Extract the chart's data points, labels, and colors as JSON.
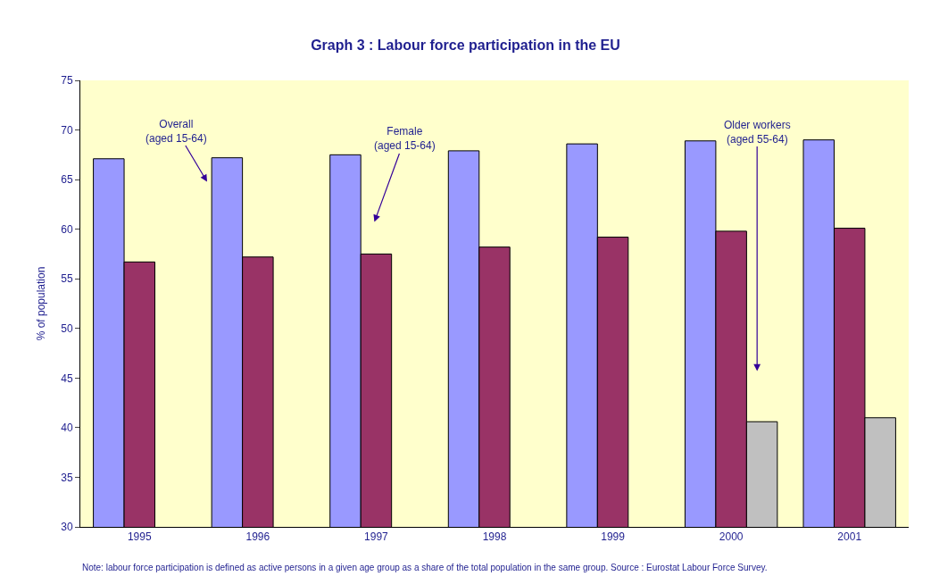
{
  "chart_data": {
    "type": "bar",
    "title": "Graph 3 : Labour force participation in the EU",
    "ylabel": "% of population",
    "categories": [
      "1995",
      "1996",
      "1997",
      "1998",
      "1999",
      "2000",
      "2001"
    ],
    "series": [
      {
        "color": "#9999ff",
        "values": [
          67.1,
          67.2,
          67.5,
          67.9,
          68.6,
          68.9,
          69.0
        ]
      },
      {
        "color": "#993366",
        "values": [
          56.7,
          57.2,
          57.5,
          58.2,
          59.2,
          59.8,
          60.1
        ]
      },
      {
        "color": "#c0c0c0",
        "values": [
          null,
          null,
          null,
          null,
          null,
          40.6,
          41.0
        ]
      }
    ],
    "ylim": [
      30,
      75
    ],
    "yticks": [
      30,
      35,
      40,
      45,
      50,
      55,
      60,
      65,
      70,
      75
    ],
    "grid": false,
    "annotations": [
      "Overall\n(aged 15-64)",
      "Female\n(aged 15-64)",
      "Older workers\n(aged 55-64)",
      "Note: labour force participation is defined as active persons in a given age group as a share of the total population in the same group. Source : Eurostat Labour Force Survey."
    ]
  }
}
